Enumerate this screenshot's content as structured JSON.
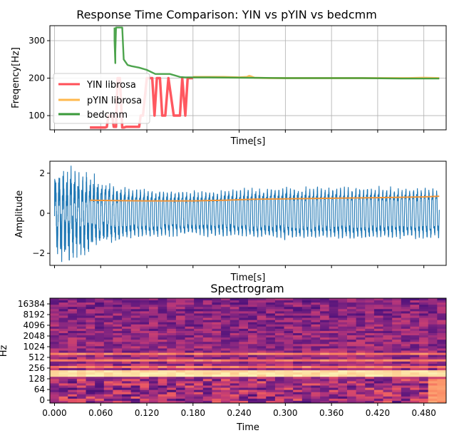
{
  "figure_title": "Response Time Comparison: YIN vs pYIN vs bedcmm",
  "colors": {
    "yin": "#ff4f57",
    "pyin": "#ffb84d",
    "bedcmm": "#3a9a3a",
    "wave": "#1f77b4",
    "wave_overlay": "#f0953a"
  },
  "chart_data": [
    {
      "type": "line",
      "xlabel": "Time[s]",
      "ylabel": "Freqency[Hz]",
      "xlim": [
        -0.006,
        0.509
      ],
      "ylim": [
        62,
        340
      ],
      "xticks": [
        0.0,
        0.06,
        0.12,
        0.18,
        0.24,
        0.3,
        0.36,
        0.42,
        0.48
      ],
      "yticks": [
        100,
        200,
        300
      ],
      "grid": true,
      "legend": "upper-left",
      "series": [
        {
          "name": "YIN librosa",
          "x": [
            0.046,
            0.066,
            0.068,
            0.07,
            0.075,
            0.077,
            0.08,
            0.082,
            0.085,
            0.088,
            0.09,
            0.093,
            0.11,
            0.112,
            0.115,
            0.12,
            0.127,
            0.13,
            0.133,
            0.137,
            0.14,
            0.142,
            0.144,
            0.148,
            0.155,
            0.16,
            0.163,
            0.166,
            0.17,
            0.173,
            0.176,
            0.18
          ],
          "y": [
            68,
            68,
            70,
            100,
            100,
            70,
            70,
            200,
            200,
            68,
            68,
            70,
            70,
            100,
            100,
            200,
            200,
            100,
            200,
            200,
            100,
            100,
            100,
            200,
            100,
            100,
            100,
            200,
            100,
            200,
            200,
            200
          ]
        },
        {
          "name": "pYIN librosa",
          "x": [
            0.18,
            0.2,
            0.22,
            0.24,
            0.25,
            0.253,
            0.256,
            0.26,
            0.28,
            0.3,
            0.32,
            0.34,
            0.36,
            0.38,
            0.4,
            0.42,
            0.44,
            0.46,
            0.48,
            0.5
          ],
          "y": [
            203,
            203,
            203,
            202,
            203,
            206,
            204,
            201,
            200,
            200,
            200,
            200,
            200,
            200,
            200,
            200,
            200,
            200,
            201,
            200
          ]
        },
        {
          "name": "bedcmm",
          "x": [
            0.078,
            0.078,
            0.079,
            0.079,
            0.08,
            0.082,
            0.084,
            0.088,
            0.09,
            0.095,
            0.1,
            0.11,
            0.12,
            0.128,
            0.131,
            0.136,
            0.15,
            0.16,
            0.163,
            0.17,
            0.2,
            0.25,
            0.3,
            0.35,
            0.4,
            0.45,
            0.5
          ],
          "y": [
            335,
            300,
            240,
            270,
            335,
            335,
            335,
            335,
            250,
            235,
            232,
            228,
            222,
            214,
            211,
            211,
            211,
            205,
            203,
            202,
            202,
            201,
            200,
            200,
            200,
            199,
            199
          ]
        }
      ]
    },
    {
      "type": "line",
      "xlabel": "Time[s]",
      "ylabel": "Amplitude",
      "xlim": [
        -0.006,
        0.509
      ],
      "ylim": [
        -2.6,
        2.6
      ],
      "xticks": [
        0.0,
        0.06,
        0.12,
        0.18,
        0.24,
        0.3,
        0.36,
        0.42,
        0.48
      ],
      "yticks": [
        -2,
        0,
        2
      ],
      "grid": false,
      "series": [
        {
          "name": "",
          "t": [
            0.0,
            0.02,
            0.05,
            0.07,
            0.12,
            0.18,
            0.22,
            0.26,
            0.3,
            0.4,
            0.5
          ],
          "envelope": [
            1.9,
            2.0,
            1.9,
            1.6,
            1.4,
            1.3,
            1.4,
            1.5,
            1.55,
            1.55,
            1.5
          ]
        },
        {
          "name": "",
          "x": [
            0.046,
            0.08,
            0.12,
            0.18,
            0.22,
            0.26,
            0.3,
            0.36,
            0.42,
            0.48,
            0.5
          ],
          "y": [
            0.65,
            0.63,
            0.62,
            0.62,
            0.65,
            0.7,
            0.72,
            0.75,
            0.78,
            0.82,
            0.85
          ]
        }
      ]
    },
    {
      "type": "heatmap",
      "title": "Spectrogram",
      "xlabel": "Time",
      "ylabel": "Hz",
      "xticks": [
        "0.000",
        "0.060",
        "0.120",
        "0.180",
        "0.240",
        "0.300",
        "0.360",
        "0.420",
        "0.480"
      ],
      "xtick_values": [
        0.0,
        0.06,
        0.12,
        0.18,
        0.24,
        0.3,
        0.36,
        0.42,
        0.48
      ],
      "xlim": [
        -0.006,
        0.509
      ],
      "yticks": [
        "0",
        "64",
        "128",
        "256",
        "512",
        "1024",
        "2048",
        "4096",
        "8192",
        "16384"
      ]
    }
  ]
}
